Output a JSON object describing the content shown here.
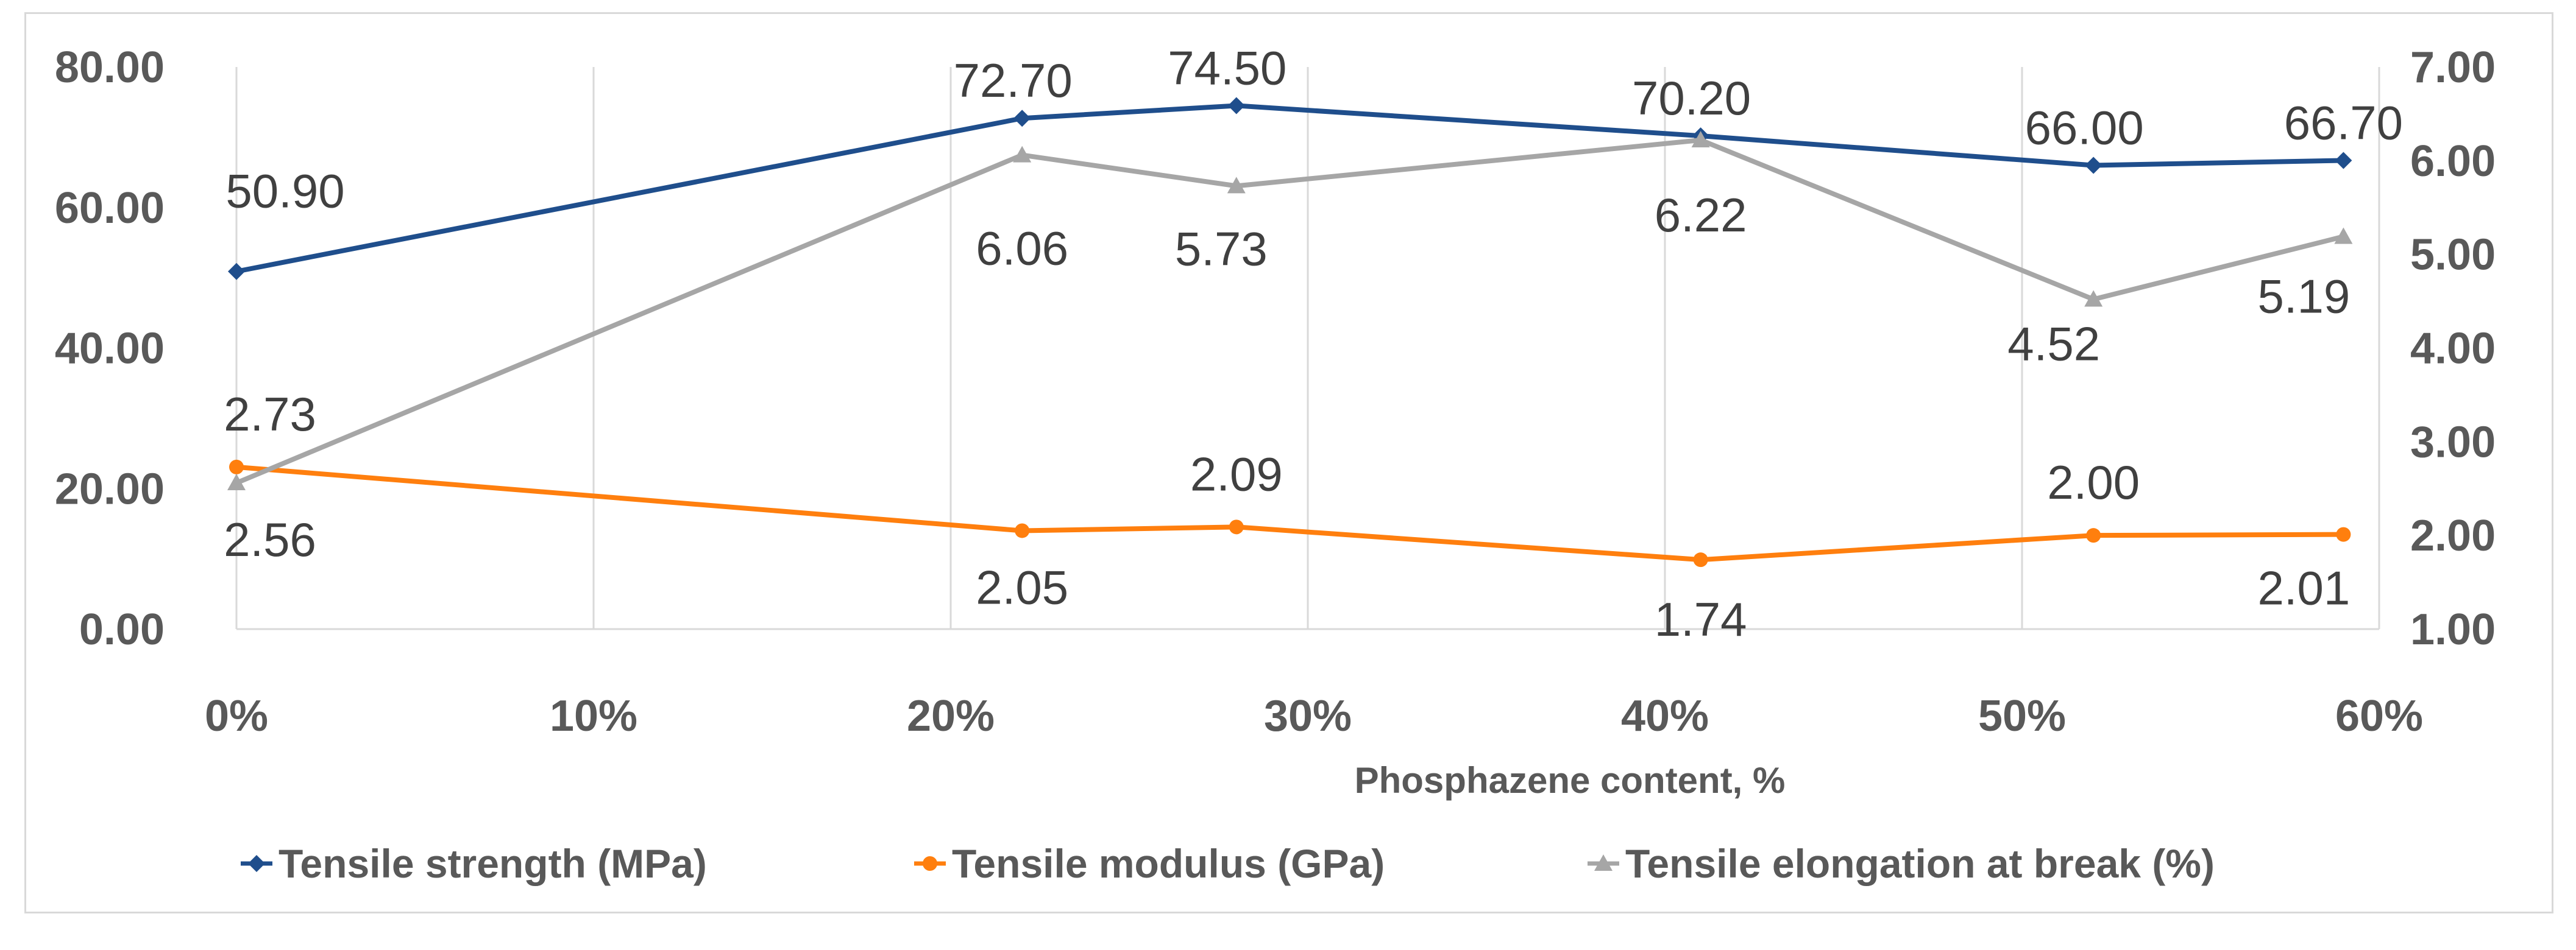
{
  "chart_data": {
    "type": "line",
    "title": "",
    "xlabel": "Phosphazene content, %",
    "ylabel": "",
    "y2label": "",
    "x_ticks": [
      "0%",
      "10%",
      "20%",
      "30%",
      "40%",
      "50%",
      "60%"
    ],
    "xlim": [
      0,
      60
    ],
    "y_ticks": [
      "0.00",
      "20.00",
      "40.00",
      "60.00",
      "80.00"
    ],
    "ylim": [
      0,
      80
    ],
    "y2_ticks": [
      "1.00",
      "2.00",
      "3.00",
      "4.00",
      "5.00",
      "6.00",
      "7.00"
    ],
    "y2lim": [
      1,
      7
    ],
    "grid": "vertical",
    "legend_position": "bottom",
    "series": [
      {
        "name": "Tensile strength (MPa)",
        "axis": "left",
        "color": "#1f4e8c",
        "marker": "diamond",
        "x": [
          0,
          22,
          28,
          41,
          52,
          59
        ],
        "values": [
          50.9,
          72.7,
          74.5,
          70.2,
          66.0,
          66.7
        ],
        "labels": [
          "50.90",
          "72.70",
          "74.50",
          "70.20",
          "66.00",
          "66.70"
        ]
      },
      {
        "name": "Tensile modulus (GPa)",
        "axis": "right",
        "color": "#ff7f0e",
        "marker": "circle",
        "x": [
          0,
          22,
          28,
          41,
          52,
          59
        ],
        "values": [
          2.73,
          2.05,
          2.09,
          1.74,
          2.0,
          2.01
        ],
        "labels": [
          "2.73",
          "2.05",
          "2.09",
          "1.74",
          "2.00",
          "2.01"
        ]
      },
      {
        "name": "Tensile elongation at break (%)",
        "axis": "right",
        "color": "#a6a6a6",
        "marker": "triangle",
        "x": [
          0,
          22,
          28,
          41,
          52,
          59
        ],
        "values": [
          2.56,
          6.06,
          5.73,
          6.22,
          4.52,
          5.19
        ],
        "labels": [
          "2.56",
          "6.06",
          "5.73",
          "6.22",
          "4.52",
          "5.19"
        ]
      }
    ]
  }
}
